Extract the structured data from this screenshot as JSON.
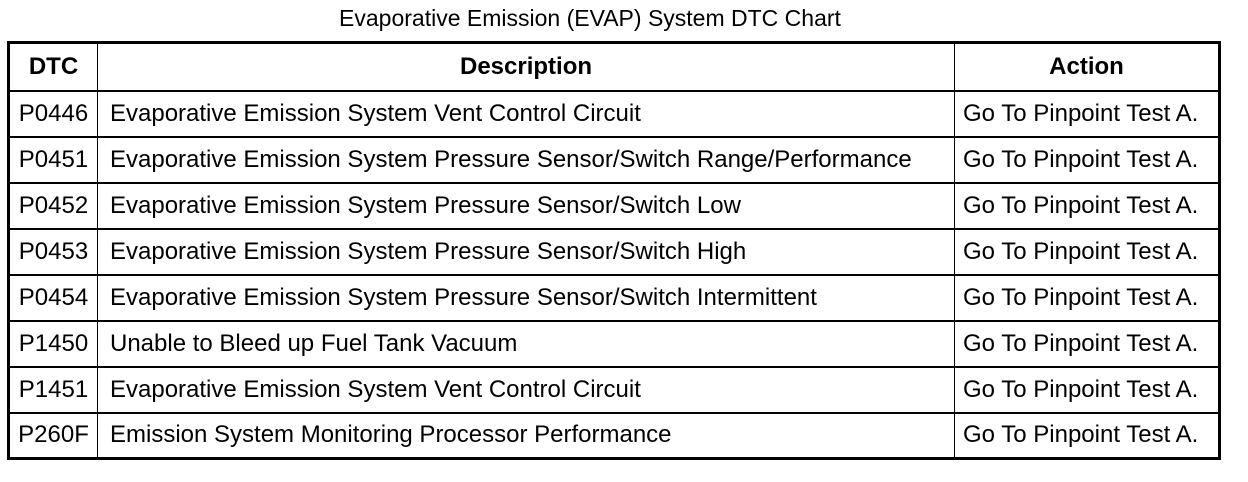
{
  "title": "Evaporative Emission (EVAP) System DTC Chart",
  "table": {
    "columns": [
      {
        "key": "dtc",
        "label": "DTC"
      },
      {
        "key": "description",
        "label": "Description"
      },
      {
        "key": "action",
        "label": "Action"
      }
    ],
    "rows": [
      {
        "dtc": "P0446",
        "description": "Evaporative Emission System Vent Control Circuit",
        "action": "Go To Pinpoint Test A."
      },
      {
        "dtc": "P0451",
        "description": "Evaporative Emission System Pressure Sensor/Switch Range/Performance",
        "action": "Go To Pinpoint Test A."
      },
      {
        "dtc": "P0452",
        "description": "Evaporative Emission System Pressure Sensor/Switch Low",
        "action": "Go To Pinpoint Test A."
      },
      {
        "dtc": "P0453",
        "description": "Evaporative Emission System Pressure Sensor/Switch High",
        "action": "Go To Pinpoint Test A."
      },
      {
        "dtc": "P0454",
        "description": "Evaporative Emission System Pressure Sensor/Switch Intermittent",
        "action": "Go To Pinpoint Test A."
      },
      {
        "dtc": "P1450",
        "description": "Unable to Bleed up Fuel Tank Vacuum",
        "action": "Go To Pinpoint Test A."
      },
      {
        "dtc": "P1451",
        "description": "Evaporative Emission System Vent Control Circuit",
        "action": "Go To Pinpoint Test A."
      },
      {
        "dtc": "P260F",
        "description": "Emission System Monitoring Processor Performance",
        "action": "Go To Pinpoint Test A."
      }
    ]
  },
  "colors": {
    "text": "#000000",
    "background": "#ffffff",
    "border": "#000000"
  }
}
